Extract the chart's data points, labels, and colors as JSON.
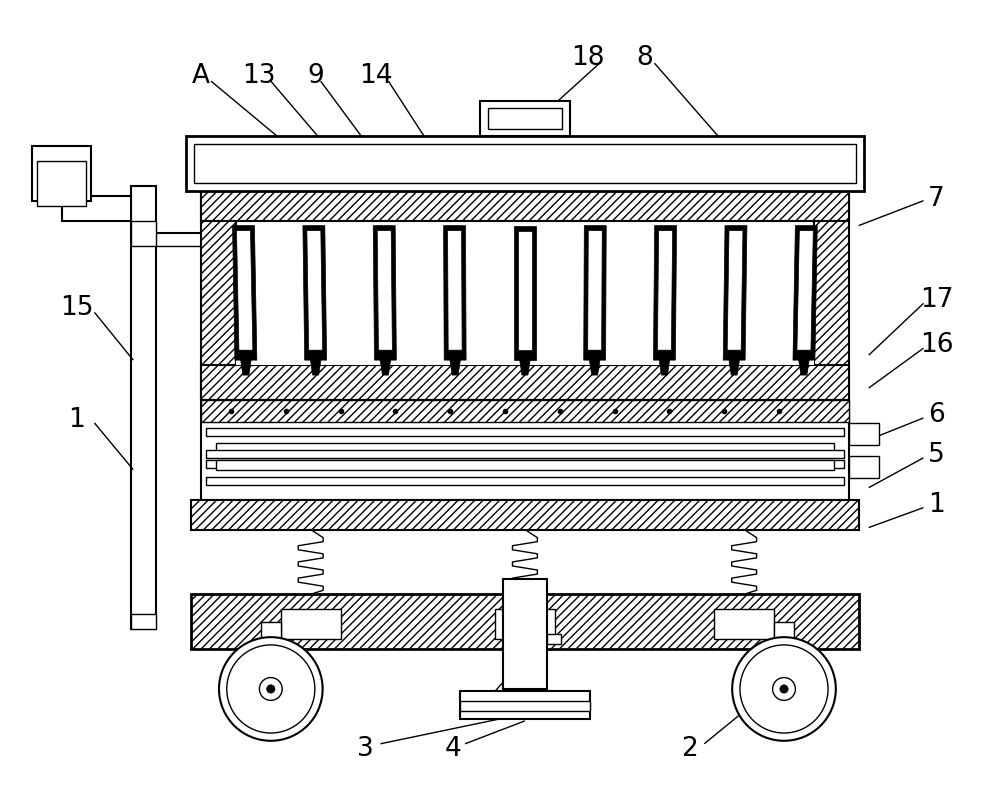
{
  "bg_color": "#ffffff",
  "line_color": "#000000",
  "figsize": [
    10.0,
    7.94
  ],
  "dpi": 100
}
